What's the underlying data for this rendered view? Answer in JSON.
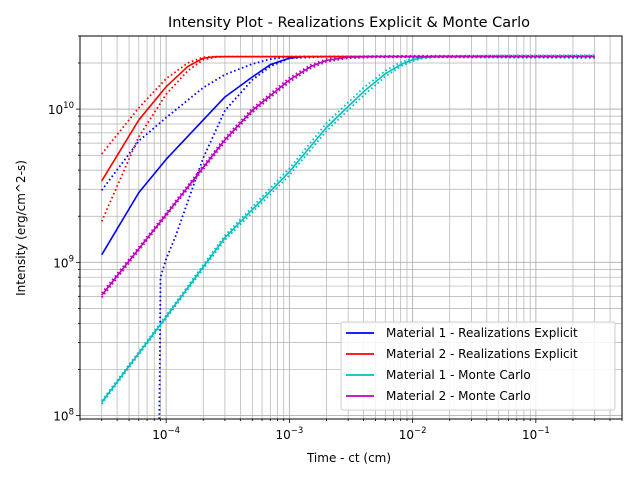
{
  "chart_data": {
    "type": "line",
    "title": "Intensity Plot - Realizations Explicit & Monte Carlo",
    "xlabel": "Time - ct (cm)",
    "ylabel": "Intensity (erg/cm^2-s)",
    "x_scale": "log",
    "y_scale": "log",
    "xlim": [
      2e-05,
      0.5
    ],
    "ylim": [
      95000000.0,
      30000000000.0
    ],
    "x_ticks": [
      {
        "value": 0.0001,
        "base": "10",
        "exp": "−4"
      },
      {
        "value": 0.001,
        "base": "10",
        "exp": "−3"
      },
      {
        "value": 0.01,
        "base": "10",
        "exp": "−2"
      },
      {
        "value": 0.1,
        "base": "10",
        "exp": "−1"
      }
    ],
    "y_ticks": [
      {
        "value": 100000000.0,
        "base": "10",
        "exp": "8"
      },
      {
        "value": 1000000000.0,
        "base": "10",
        "exp": "9"
      },
      {
        "value": 10000000000.0,
        "base": "10",
        "exp": "10"
      }
    ],
    "grid": "major and minor",
    "legend_position": "lower-right",
    "series": [
      {
        "name": "Material 1 - Realizations Explicit",
        "color": "#0000ff",
        "style": "solid",
        "x": [
          3e-05,
          6e-05,
          0.0001,
          0.0002,
          0.0003,
          0.0005,
          0.0007,
          0.001,
          0.0013,
          0.002,
          0.005,
          0.02,
          0.1,
          0.3
        ],
        "y": [
          1120000000.0,
          2850000000.0,
          4700000000.0,
          8500000000.0,
          12000000000.0,
          16200000000.0,
          19500000000.0,
          21500000000.0,
          22000000000.0,
          22000000000.0,
          22000000000.0,
          22000000000.0,
          22000000000.0,
          22000000000.0
        ]
      },
      {
        "name": "Material 1 - Realizations Explicit (bounds)",
        "color": "#0000ff",
        "style": "dotted",
        "x": [
          3e-05,
          6e-05,
          0.0001,
          0.0002,
          0.0003,
          0.0005,
          0.0007,
          0.001,
          0.002,
          0.01,
          0.1,
          0.3
        ],
        "y": [
          2950000000.0,
          6200000000.0,
          8800000000.0,
          13800000000.0,
          16800000000.0,
          19700000000.0,
          21200000000.0,
          22000000000.0,
          22000000000.0,
          22000000000.0,
          22000000000.0,
          22000000000.0
        ]
      },
      {
        "name": "Material 1 - Realizations Explicit (bounds)",
        "color": "#0000ff",
        "style": "dotted",
        "x": [
          8.8e-05,
          8.9e-05,
          9e-05,
          0.0001,
          0.00012,
          0.00015,
          0.0002,
          0.0003,
          0.0005,
          0.0007,
          0.001,
          0.002,
          0.01,
          0.1,
          0.3
        ],
        "y": [
          95000000.0,
          250000000.0,
          800000000.0,
          1050000000.0,
          1500000000.0,
          2500000000.0,
          4800000000.0,
          9800000000.0,
          15500000000.0,
          19000000000.0,
          21500000000.0,
          22000000000.0,
          22000000000.0,
          22000000000.0,
          22000000000.0
        ]
      },
      {
        "name": "Material 2 - Realizations Explicit",
        "color": "#ff0000",
        "style": "solid",
        "x": [
          3e-05,
          6e-05,
          0.0001,
          0.00015,
          0.0002,
          0.00025,
          0.0003,
          0.001,
          0.1,
          0.3
        ],
        "y": [
          3400000000.0,
          8500000000.0,
          14000000000.0,
          19000000000.0,
          21500000000.0,
          22000000000.0,
          22000000000.0,
          22000000000.0,
          22000000000.0,
          22000000000.0
        ]
      },
      {
        "name": "Material 2 - Realizations Explicit (bounds)",
        "color": "#ff0000",
        "style": "dotted",
        "x": [
          3e-05,
          6e-05,
          0.0001,
          0.00015,
          0.0002,
          0.00025,
          0.001,
          0.1,
          0.3
        ],
        "y": [
          5100000000.0,
          10200000000.0,
          15800000000.0,
          20000000000.0,
          21800000000.0,
          22000000000.0,
          22000000000.0,
          22000000000.0,
          22000000000.0
        ]
      },
      {
        "name": "Material 2 - Realizations Explicit (bounds)",
        "color": "#ff0000",
        "style": "dotted",
        "x": [
          3e-05,
          6e-05,
          0.0001,
          0.00015,
          0.0002,
          0.00025,
          0.0003,
          0.001,
          0.1,
          0.3
        ],
        "y": [
          1850000000.0,
          6600000000.0,
          12500000000.0,
          17800000000.0,
          21000000000.0,
          21800000000.0,
          22000000000.0,
          22000000000.0,
          22000000000.0,
          22000000000.0
        ]
      },
      {
        "name": "Material 1 - Monte Carlo",
        "color": "#00bfbf",
        "style": "solid",
        "x": [
          3e-05,
          0.0001,
          0.0003,
          0.001,
          0.002,
          0.004,
          0.006,
          0.008,
          0.01,
          0.012,
          0.015,
          0.02,
          0.05,
          0.1,
          0.3
        ],
        "y": [
          122000000.0,
          440000000.0,
          1450000000.0,
          3900000000.0,
          7600000000.0,
          13000000000.0,
          17000000000.0,
          19500000000.0,
          21000000000.0,
          21700000000.0,
          22000000000.0,
          22000000000.0,
          22000000000.0,
          22000000000.0,
          22000000000.0
        ]
      },
      {
        "name": "Material 1 - Monte Carlo (bounds)",
        "color": "#00bfbf",
        "style": "dotted",
        "x": [
          3e-05,
          0.0001,
          0.0003,
          0.001,
          0.002,
          0.004,
          0.006,
          0.008,
          0.01,
          0.012,
          0.015,
          0.02,
          0.05,
          0.1,
          0.3
        ],
        "y": [
          125000000.0,
          450000000.0,
          1500000000.0,
          4100000000.0,
          8100000000.0,
          13800000000.0,
          17800000000.0,
          20200000000.0,
          21500000000.0,
          22000000000.0,
          22200000000.0,
          22200000000.0,
          22400000000.0,
          22400000000.0,
          22500000000.0
        ]
      },
      {
        "name": "Material 1 - Monte Carlo (bounds)",
        "color": "#00bfbf",
        "style": "dotted",
        "x": [
          3e-05,
          0.0001,
          0.0003,
          0.001,
          0.002,
          0.004,
          0.006,
          0.008,
          0.01,
          0.012,
          0.015,
          0.02,
          0.05,
          0.1,
          0.3
        ],
        "y": [
          119000000.0,
          430000000.0,
          1400000000.0,
          3700000000.0,
          7200000000.0,
          12300000000.0,
          16300000000.0,
          19000000000.0,
          20600000000.0,
          21400000000.0,
          21800000000.0,
          21800000000.0,
          21700000000.0,
          21600000000.0,
          21500000000.0
        ]
      },
      {
        "name": "Material 2 - Monte Carlo",
        "color": "#bf00bf",
        "style": "solid",
        "x": [
          3e-05,
          0.0001,
          0.0003,
          0.0005,
          0.001,
          0.0015,
          0.002,
          0.003,
          0.005,
          0.01,
          0.1,
          0.3
        ],
        "y": [
          610000000.0,
          2050000000.0,
          6300000000.0,
          9800000000.0,
          15500000000.0,
          19000000000.0,
          20800000000.0,
          21800000000.0,
          22000000000.0,
          22000000000.0,
          22000000000.0,
          22000000000.0
        ]
      },
      {
        "name": "Material 2 - Monte Carlo (bounds)",
        "color": "#bf00bf",
        "style": "dotted",
        "x": [
          3e-05,
          0.0001,
          0.0003,
          0.0005,
          0.001,
          0.0015,
          0.002,
          0.003,
          0.005,
          0.01,
          0.1,
          0.3
        ],
        "y": [
          630000000.0,
          2100000000.0,
          6500000000.0,
          10100000000.0,
          16000000000.0,
          19500000000.0,
          21200000000.0,
          22000000000.0,
          22200000000.0,
          22300000000.0,
          22300000000.0,
          22300000000.0
        ]
      },
      {
        "name": "Material 2 - Monte Carlo (bounds)",
        "color": "#bf00bf",
        "style": "dotted",
        "x": [
          3e-05,
          0.0001,
          0.0003,
          0.0005,
          0.001,
          0.0015,
          0.002,
          0.003,
          0.005,
          0.01,
          0.1,
          0.3
        ],
        "y": [
          590000000.0,
          2000000000.0,
          6100000000.0,
          9500000000.0,
          15000000000.0,
          18500000000.0,
          20400000000.0,
          21500000000.0,
          21800000000.0,
          21800000000.0,
          21800000000.0,
          21800000000.0
        ]
      }
    ],
    "legend": [
      {
        "label": "Material 1 - Realizations Explicit",
        "color": "#0000ff"
      },
      {
        "label": "Material 2 - Realizations Explicit",
        "color": "#ff0000"
      },
      {
        "label": "Material 1 - Monte Carlo",
        "color": "#00bfbf"
      },
      {
        "label": "Material 2 - Monte Carlo",
        "color": "#bf00bf"
      }
    ]
  }
}
